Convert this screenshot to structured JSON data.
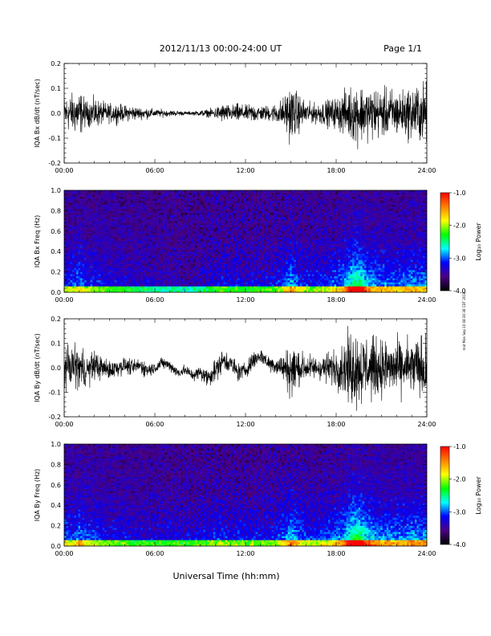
{
  "header": {
    "date_range": "2012/11/13  00:00-24:00 UT",
    "page": "Page 1/1"
  },
  "side_note": "mat Mon Sep 10 08:30:38 CDT 2018",
  "chart_data": [
    {
      "type": "line",
      "ylabel": "IQA Bx dB/dt (nT/sec)",
      "xlabel": "",
      "xlim": [
        0,
        24
      ],
      "ylim": [
        -0.2,
        0.2
      ],
      "x_ticks": [
        "00:00",
        "06:00",
        "12:00",
        "18:00",
        "24:00"
      ],
      "y_ticks": [
        "-0.2",
        "-0.1",
        "0.0",
        "0.1",
        "0.2"
      ],
      "series": [
        {
          "values_note": "",
          "x": [
            0,
            0.5,
            1,
            1.5,
            2,
            2.5,
            3,
            3.5,
            4,
            4.5,
            5,
            5.5,
            6,
            6.5,
            7,
            7.5,
            8,
            8.5,
            9,
            9.5,
            10,
            10.5,
            11,
            11.5,
            12,
            12.5,
            13,
            13.5,
            14,
            14.5,
            15,
            15.5,
            16,
            16.5,
            17,
            17.5,
            18,
            18.5,
            19,
            19.5,
            20,
            20.5,
            21,
            21.5,
            22,
            22.5,
            23,
            23.5,
            24
          ],
          "amplitude": [
            0.09,
            0.1,
            0.12,
            0.06,
            0.08,
            0.06,
            0.05,
            0.05,
            0.04,
            0.04,
            0.03,
            0.03,
            0.02,
            0.02,
            0.015,
            0.015,
            0.01,
            0.01,
            0.015,
            0.02,
            0.03,
            0.05,
            0.04,
            0.05,
            0.04,
            0.05,
            0.04,
            0.04,
            0.05,
            0.08,
            0.15,
            0.1,
            0.06,
            0.05,
            0.06,
            0.07,
            0.08,
            0.11,
            0.14,
            0.16,
            0.13,
            0.14,
            0.12,
            0.13,
            0.12,
            0.12,
            0.14,
            0.15,
            0.16
          ]
        }
      ]
    },
    {
      "type": "heatmap",
      "ylabel": "IQA Bx Freq (Hz)",
      "xlabel": "",
      "xlim": [
        0,
        24
      ],
      "ylim": [
        0.0,
        1.0
      ],
      "x_ticks": [
        "00:00",
        "06:00",
        "12:00",
        "18:00",
        "24:00"
      ],
      "y_ticks": [
        "0.0",
        "0.2",
        "0.4",
        "0.6",
        "0.8",
        "1.0"
      ],
      "colorbar": {
        "label": "Log₁₀ Power",
        "range": [
          -4.0,
          -1.0
        ],
        "ticks": [
          "-4.0",
          "-3.0",
          "-2.0",
          "-1.0"
        ],
        "colors": [
          "#000000",
          "#4b0082",
          "#0000ff",
          "#00ffff",
          "#00ff00",
          "#ffff00",
          "#ff8000",
          "#ff0000"
        ]
      },
      "x": [
        0,
        0.5,
        1,
        1.5,
        2,
        2.5,
        3,
        3.5,
        4,
        4.5,
        5,
        5.5,
        6,
        6.5,
        7,
        7.5,
        8,
        8.5,
        9,
        9.5,
        10,
        10.5,
        11,
        11.5,
        12,
        12.5,
        13,
        13.5,
        14,
        14.5,
        15,
        15.5,
        16,
        16.5,
        17,
        17.5,
        18,
        18.5,
        19,
        19.5,
        20,
        20.5,
        21,
        21.5,
        22,
        22.5,
        23,
        23.5,
        24
      ],
      "activity": [
        0.35,
        0.3,
        0.45,
        0.3,
        0.3,
        0.25,
        0.2,
        0.2,
        0.2,
        0.15,
        0.15,
        0.15,
        0.1,
        0.1,
        0.1,
        0.1,
        0.05,
        0.05,
        0.1,
        0.15,
        0.2,
        0.25,
        0.2,
        0.25,
        0.2,
        0.2,
        0.2,
        0.2,
        0.25,
        0.35,
        0.55,
        0.4,
        0.3,
        0.25,
        0.3,
        0.35,
        0.4,
        0.5,
        0.75,
        0.9,
        0.6,
        0.5,
        0.45,
        0.45,
        0.4,
        0.45,
        0.5,
        0.45,
        0.5
      ]
    },
    {
      "type": "line",
      "ylabel": "IQA By dB/dt (nT/sec)",
      "xlabel": "",
      "xlim": [
        0,
        24
      ],
      "ylim": [
        -0.2,
        0.2
      ],
      "x_ticks": [
        "00:00",
        "06:00",
        "12:00",
        "18:00",
        "24:00"
      ],
      "y_ticks": [
        "-0.2",
        "-0.1",
        "0.0",
        "0.1",
        "0.2"
      ],
      "series": [
        {
          "x": [
            0,
            0.5,
            1,
            1.5,
            2,
            2.5,
            3,
            3.5,
            4,
            4.5,
            5,
            5.5,
            6,
            6.5,
            7,
            7.5,
            8,
            8.5,
            9,
            9.5,
            10,
            10.5,
            11,
            11.5,
            12,
            12.5,
            13,
            13.5,
            14,
            14.5,
            15,
            15.5,
            16,
            16.5,
            17,
            17.5,
            18,
            18.5,
            19,
            19.5,
            20,
            20.5,
            21,
            21.5,
            22,
            22.5,
            23,
            23.5,
            24
          ],
          "amplitude": [
            0.1,
            0.1,
            0.12,
            0.08,
            0.08,
            0.06,
            0.05,
            0.05,
            0.04,
            0.04,
            0.04,
            0.04,
            0.03,
            0.03,
            0.03,
            0.03,
            0.03,
            0.03,
            0.04,
            0.05,
            0.06,
            0.06,
            0.05,
            0.05,
            0.04,
            0.05,
            0.04,
            0.04,
            0.05,
            0.07,
            0.15,
            0.1,
            0.07,
            0.06,
            0.07,
            0.08,
            0.1,
            0.14,
            0.2,
            0.2,
            0.17,
            0.16,
            0.15,
            0.15,
            0.14,
            0.14,
            0.15,
            0.16,
            0.17
          ],
          "trend": [
            0,
            0.01,
            0,
            -0.01,
            0.01,
            0,
            -0.01,
            0,
            0.01,
            0,
            0.01,
            -0.01,
            0,
            0.02,
            0.01,
            -0.02,
            -0.01,
            -0.03,
            -0.02,
            -0.04,
            -0.01,
            0.03,
            0.02,
            -0.02,
            -0.01,
            0.03,
            0.05,
            0.02,
            0.01,
            0,
            -0.01,
            0,
            0,
            0,
            0,
            0,
            0,
            0,
            0,
            0,
            0,
            0,
            0,
            0,
            0,
            0,
            0,
            0,
            0
          ]
        }
      ]
    },
    {
      "type": "heatmap",
      "ylabel": "IQA By Freq (Hz)",
      "xlabel": "Universal Time (hh:mm)",
      "xlim": [
        0,
        24
      ],
      "ylim": [
        0.0,
        1.0
      ],
      "x_ticks": [
        "00:00",
        "06:00",
        "12:00",
        "18:00",
        "24:00"
      ],
      "y_ticks": [
        "0.0",
        "0.2",
        "0.4",
        "0.6",
        "0.8",
        "1.0"
      ],
      "colorbar": {
        "label": "Log₁₀ Power",
        "range": [
          -4.0,
          -1.0
        ],
        "ticks": [
          "-4.0",
          "-3.0",
          "-2.0",
          "-1.0"
        ],
        "colors": [
          "#000000",
          "#4b0082",
          "#0000ff",
          "#00ffff",
          "#00ff00",
          "#ffff00",
          "#ff8000",
          "#ff0000"
        ]
      },
      "x": [
        0,
        0.5,
        1,
        1.5,
        2,
        2.5,
        3,
        3.5,
        4,
        4.5,
        5,
        5.5,
        6,
        6.5,
        7,
        7.5,
        8,
        8.5,
        9,
        9.5,
        10,
        10.5,
        11,
        11.5,
        12,
        12.5,
        13,
        13.5,
        14,
        14.5,
        15,
        15.5,
        16,
        16.5,
        17,
        17.5,
        18,
        18.5,
        19,
        19.5,
        20,
        20.5,
        21,
        21.5,
        22,
        22.5,
        23,
        23.5,
        24
      ],
      "activity": [
        0.4,
        0.35,
        0.5,
        0.35,
        0.35,
        0.3,
        0.25,
        0.25,
        0.25,
        0.2,
        0.2,
        0.2,
        0.2,
        0.2,
        0.2,
        0.2,
        0.2,
        0.2,
        0.25,
        0.25,
        0.3,
        0.3,
        0.25,
        0.3,
        0.25,
        0.3,
        0.25,
        0.25,
        0.3,
        0.4,
        0.6,
        0.45,
        0.35,
        0.3,
        0.35,
        0.4,
        0.45,
        0.55,
        0.85,
        0.95,
        0.65,
        0.55,
        0.5,
        0.5,
        0.45,
        0.5,
        0.55,
        0.5,
        0.55
      ]
    }
  ]
}
